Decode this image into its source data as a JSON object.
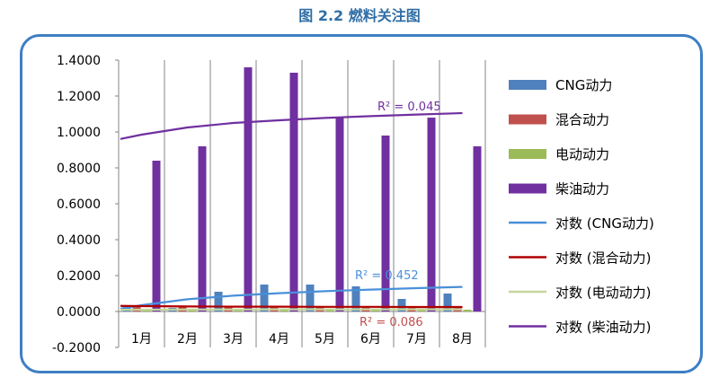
{
  "figure_title": "图 2.2 燃料关注图",
  "chart_data": {
    "type": "bar",
    "categories": [
      "1月",
      "2月",
      "3月",
      "4月",
      "5月",
      "6月",
      "7月",
      "8月"
    ],
    "ylim": [
      -0.2,
      1.4
    ],
    "yticks": [
      "1.4000",
      "1.2000",
      "1.0000",
      "0.8000",
      "0.6000",
      "0.4000",
      "0.2000",
      "0.0000",
      "-0.2000"
    ],
    "series": [
      {
        "name": "CNG动力",
        "color": "#4f81bd",
        "values": [
          0.03,
          0.02,
          0.11,
          0.15,
          0.15,
          0.14,
          0.07,
          0.1
        ]
      },
      {
        "name": "混合动力",
        "color": "#c0504d",
        "values": [
          0.03,
          0.03,
          0.03,
          0.03,
          0.03,
          0.03,
          0.02,
          0.02
        ]
      },
      {
        "name": "电动动力",
        "color": "#9bbb59",
        "values": [
          0.01,
          0.01,
          0.01,
          0.01,
          0.01,
          0.01,
          0.01,
          0.01
        ]
      },
      {
        "name": "柴油动力",
        "color": "#7030a0",
        "values": [
          0.84,
          0.92,
          1.36,
          1.33,
          1.08,
          0.98,
          1.08,
          0.92
        ]
      }
    ],
    "trendlines": [
      {
        "name": "对数 (CNG动力)",
        "color": "#4a90d9",
        "r2_label": "R² = 0.452",
        "values": [
          0.035,
          0.068,
          0.088,
          0.102,
          0.113,
          0.122,
          0.13,
          0.137
        ]
      },
      {
        "name": "对数 (混合动力)",
        "color": "#b00000",
        "r2_label": "",
        "values": [
          0.03,
          0.028,
          0.027,
          0.027,
          0.026,
          0.026,
          0.025,
          0.025
        ]
      },
      {
        "name": "对数 (电动动力)",
        "color": "#c3d69b",
        "r2_label": "",
        "values": [
          0.01,
          0.011,
          0.011,
          0.012,
          0.012,
          0.012,
          0.012,
          0.012
        ]
      },
      {
        "name": "对数 (柴油动力)",
        "color": "#7030a0",
        "r2_label": "R² = 0.045",
        "values": [
          0.985,
          1.025,
          1.05,
          1.065,
          1.078,
          1.088,
          1.097,
          1.105
        ]
      }
    ],
    "extra_labels": [
      {
        "text": "R² = 0.086",
        "color": "#c0504d"
      }
    ]
  }
}
